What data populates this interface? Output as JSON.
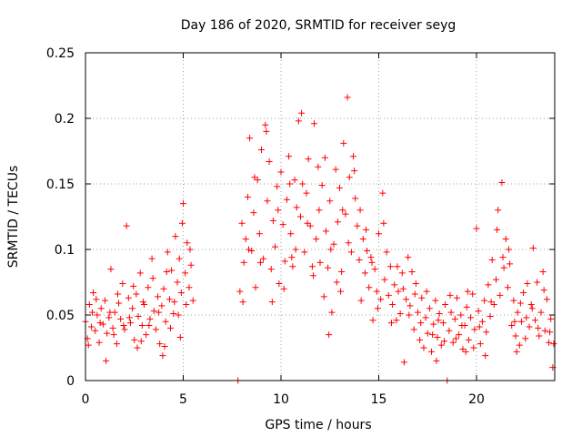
{
  "chart_data": {
    "type": "scatter",
    "title": "Day 186 of 2020, SRMTID for receiver seyg",
    "xlabel": "GPS time / hours",
    "ylabel": "SRMTID / TECUs",
    "xlim": [
      0,
      24
    ],
    "ylim": [
      0,
      0.25
    ],
    "xticks": [
      0,
      5,
      10,
      15,
      20
    ],
    "yticks": [
      0,
      0.05,
      0.1,
      0.15,
      0.2,
      0.25
    ],
    "xtick_labels": [
      "0",
      "5",
      "10",
      "15",
      "20"
    ],
    "ytick_labels": [
      "0",
      "0.05",
      "0.1",
      "0.15",
      "0.2",
      "0.25"
    ],
    "grid": true,
    "marker": "+",
    "color": "#ff0000",
    "grid_color": "#a0a0a0",
    "series": [
      {
        "name": "SRMTID",
        "points": [
          [
            0.0,
            0.045
          ],
          [
            0.1,
            0.032
          ],
          [
            0.2,
            0.058
          ],
          [
            0.3,
            0.041
          ],
          [
            0.4,
            0.067
          ],
          [
            0.5,
            0.038
          ],
          [
            0.6,
            0.05
          ],
          [
            0.7,
            0.029
          ],
          [
            0.8,
            0.055
          ],
          [
            0.9,
            0.043
          ],
          [
            1.0,
            0.061
          ],
          [
            1.1,
            0.036
          ],
          [
            1.2,
            0.048
          ],
          [
            1.3,
            0.085
          ],
          [
            1.4,
            0.04
          ],
          [
            1.5,
            0.052
          ],
          [
            1.6,
            0.028
          ],
          [
            1.7,
            0.059
          ],
          [
            1.8,
            0.047
          ],
          [
            1.9,
            0.074
          ],
          [
            2.0,
            0.039
          ],
          [
            2.1,
            0.118
          ],
          [
            2.2,
            0.063
          ],
          [
            2.3,
            0.044
          ],
          [
            2.4,
            0.055
          ],
          [
            2.5,
            0.031
          ],
          [
            2.6,
            0.066
          ],
          [
            2.7,
            0.049
          ],
          [
            2.8,
            0.082
          ],
          [
            2.9,
            0.042
          ],
          [
            3.0,
            0.058
          ],
          [
            3.1,
            0.035
          ],
          [
            3.2,
            0.071
          ],
          [
            3.3,
            0.047
          ],
          [
            3.4,
            0.093
          ],
          [
            3.5,
            0.053
          ],
          [
            3.6,
            0.039
          ],
          [
            3.7,
            0.064
          ],
          [
            3.8,
            0.028
          ],
          [
            3.9,
            0.057
          ],
          [
            4.0,
            0.07
          ],
          [
            4.1,
            0.045
          ],
          [
            4.2,
            0.098
          ],
          [
            4.3,
            0.062
          ],
          [
            4.4,
            0.084
          ],
          [
            4.5,
            0.051
          ],
          [
            4.6,
            0.11
          ],
          [
            4.7,
            0.075
          ],
          [
            4.8,
            0.093
          ],
          [
            4.9,
            0.067
          ],
          [
            5.0,
            0.135
          ],
          [
            5.1,
            0.082
          ],
          [
            5.2,
            0.105
          ],
          [
            5.3,
            0.071
          ],
          [
            5.4,
            0.088
          ],
          [
            5.5,
            0.061
          ],
          [
            0.15,
            0.027
          ],
          [
            0.35,
            0.052
          ],
          [
            0.55,
            0.062
          ],
          [
            0.75,
            0.044
          ],
          [
            1.05,
            0.015
          ],
          [
            1.25,
            0.052
          ],
          [
            1.45,
            0.035
          ],
          [
            1.65,
            0.066
          ],
          [
            1.95,
            0.042
          ],
          [
            2.25,
            0.048
          ],
          [
            2.45,
            0.072
          ],
          [
            2.65,
            0.025
          ],
          [
            2.95,
            0.06
          ],
          [
            3.25,
            0.042
          ],
          [
            3.45,
            0.078
          ],
          [
            3.75,
            0.052
          ],
          [
            3.95,
            0.019
          ],
          [
            4.15,
            0.083
          ],
          [
            4.35,
            0.04
          ],
          [
            4.55,
            0.06
          ],
          [
            4.75,
            0.05
          ],
          [
            4.95,
            0.12
          ],
          [
            5.15,
            0.058
          ],
          [
            5.35,
            0.1
          ],
          [
            4.85,
            0.033
          ],
          [
            4.05,
            0.026
          ],
          [
            2.85,
            0.03
          ],
          [
            7.8,
            0.0
          ],
          [
            7.9,
            0.068
          ],
          [
            8.0,
            0.12
          ],
          [
            8.1,
            0.09
          ],
          [
            8.2,
            0.108
          ],
          [
            8.3,
            0.14
          ],
          [
            8.4,
            0.185
          ],
          [
            8.5,
            0.099
          ],
          [
            8.6,
            0.128
          ],
          [
            8.7,
            0.071
          ],
          [
            8.8,
            0.153
          ],
          [
            8.9,
            0.112
          ],
          [
            9.0,
            0.176
          ],
          [
            9.1,
            0.093
          ],
          [
            9.2,
            0.195
          ],
          [
            9.3,
            0.137
          ],
          [
            9.4,
            0.167
          ],
          [
            9.5,
            0.085
          ],
          [
            9.6,
            0.122
          ],
          [
            9.7,
            0.102
          ],
          [
            9.8,
            0.148
          ],
          [
            9.9,
            0.074
          ],
          [
            10.0,
            0.159
          ],
          [
            10.1,
            0.119
          ],
          [
            10.2,
            0.091
          ],
          [
            10.3,
            0.138
          ],
          [
            10.4,
            0.171
          ],
          [
            10.5,
            0.112
          ],
          [
            10.6,
            0.087
          ],
          [
            10.7,
            0.153
          ],
          [
            10.8,
            0.132
          ],
          [
            10.9,
            0.198
          ],
          [
            11.0,
            0.125
          ],
          [
            11.1,
            0.15
          ],
          [
            11.2,
            0.098
          ],
          [
            11.3,
            0.143
          ],
          [
            11.4,
            0.169
          ],
          [
            11.5,
            0.118
          ],
          [
            11.6,
            0.087
          ],
          [
            11.7,
            0.196
          ],
          [
            11.8,
            0.108
          ],
          [
            11.9,
            0.163
          ],
          [
            12.0,
            0.09
          ],
          [
            12.1,
            0.149
          ],
          [
            12.2,
            0.064
          ],
          [
            12.3,
            0.114
          ],
          [
            12.4,
            0.086
          ],
          [
            12.5,
            0.137
          ],
          [
            12.6,
            0.052
          ],
          [
            12.7,
            0.104
          ],
          [
            12.8,
            0.161
          ],
          [
            12.9,
            0.121
          ],
          [
            13.0,
            0.147
          ],
          [
            13.1,
            0.083
          ],
          [
            13.2,
            0.181
          ],
          [
            13.3,
            0.127
          ],
          [
            13.4,
            0.216
          ],
          [
            13.5,
            0.155
          ],
          [
            13.6,
            0.098
          ],
          [
            13.7,
            0.171
          ],
          [
            13.8,
            0.139
          ],
          [
            13.9,
            0.118
          ],
          [
            14.0,
            0.092
          ],
          [
            14.1,
            0.061
          ],
          [
            14.2,
            0.108
          ],
          [
            14.3,
            0.082
          ],
          [
            14.4,
            0.099
          ],
          [
            14.5,
            0.071
          ],
          [
            14.6,
            0.094
          ],
          [
            14.7,
            0.046
          ],
          [
            14.8,
            0.085
          ],
          [
            14.9,
            0.068
          ],
          [
            15.0,
            0.112
          ],
          [
            15.1,
            0.062
          ],
          [
            15.2,
            0.143
          ],
          [
            15.3,
            0.077
          ],
          [
            15.4,
            0.098
          ],
          [
            15.5,
            0.065
          ],
          [
            8.05,
            0.06
          ],
          [
            8.35,
            0.1
          ],
          [
            8.65,
            0.155
          ],
          [
            8.95,
            0.09
          ],
          [
            9.25,
            0.19
          ],
          [
            9.55,
            0.06
          ],
          [
            9.85,
            0.13
          ],
          [
            10.15,
            0.07
          ],
          [
            10.45,
            0.15
          ],
          [
            10.75,
            0.1
          ],
          [
            11.05,
            0.204
          ],
          [
            11.35,
            0.12
          ],
          [
            11.65,
            0.08
          ],
          [
            11.95,
            0.13
          ],
          [
            12.25,
            0.17
          ],
          [
            12.55,
            0.1
          ],
          [
            12.85,
            0.075
          ],
          [
            13.15,
            0.13
          ],
          [
            13.45,
            0.105
          ],
          [
            13.75,
            0.16
          ],
          [
            14.05,
            0.13
          ],
          [
            14.35,
            0.115
          ],
          [
            14.65,
            0.09
          ],
          [
            14.95,
            0.055
          ],
          [
            15.25,
            0.12
          ],
          [
            12.45,
            0.035
          ],
          [
            13.05,
            0.068
          ],
          [
            10.55,
            0.094
          ],
          [
            15.6,
            0.087
          ],
          [
            15.7,
            0.058
          ],
          [
            15.8,
            0.073
          ],
          [
            15.9,
            0.046
          ],
          [
            16.0,
            0.068
          ],
          [
            16.1,
            0.051
          ],
          [
            16.2,
            0.082
          ],
          [
            16.3,
            0.014
          ],
          [
            16.4,
            0.062
          ],
          [
            16.5,
            0.094
          ],
          [
            16.6,
            0.057
          ],
          [
            16.7,
            0.083
          ],
          [
            16.8,
            0.039
          ],
          [
            16.9,
            0.074
          ],
          [
            17.0,
            0.052
          ],
          [
            17.1,
            0.031
          ],
          [
            17.2,
            0.063
          ],
          [
            17.3,
            0.025
          ],
          [
            17.4,
            0.048
          ],
          [
            17.5,
            0.036
          ],
          [
            17.6,
            0.055
          ],
          [
            17.7,
            0.022
          ],
          [
            17.8,
            0.043
          ],
          [
            17.9,
            0.061
          ],
          [
            18.0,
            0.033
          ],
          [
            18.1,
            0.051
          ],
          [
            18.2,
            0.027
          ],
          [
            18.3,
            0.044
          ],
          [
            18.4,
            0.058
          ],
          [
            18.5,
            0.0
          ],
          [
            18.6,
            0.038
          ],
          [
            18.7,
            0.052
          ],
          [
            18.8,
            0.029
          ],
          [
            18.9,
            0.047
          ],
          [
            19.0,
            0.063
          ],
          [
            19.1,
            0.035
          ],
          [
            19.2,
            0.05
          ],
          [
            19.3,
            0.024
          ],
          [
            19.4,
            0.042
          ],
          [
            19.5,
            0.056
          ],
          [
            19.6,
            0.031
          ],
          [
            19.7,
            0.048
          ],
          [
            19.8,
            0.066
          ],
          [
            19.9,
            0.039
          ],
          [
            20.0,
            0.116
          ],
          [
            20.1,
            0.053
          ],
          [
            20.2,
            0.028
          ],
          [
            20.3,
            0.045
          ],
          [
            20.4,
            0.061
          ],
          [
            20.5,
            0.037
          ],
          [
            20.6,
            0.073
          ],
          [
            20.7,
            0.049
          ],
          [
            20.8,
            0.092
          ],
          [
            20.9,
            0.058
          ],
          [
            21.0,
            0.077
          ],
          [
            21.1,
            0.13
          ],
          [
            21.2,
            0.065
          ],
          [
            21.3,
            0.151
          ],
          [
            21.4,
            0.086
          ],
          [
            21.5,
            0.108
          ],
          [
            21.6,
            0.071
          ],
          [
            21.7,
            0.089
          ],
          [
            21.8,
            0.042
          ],
          [
            21.9,
            0.061
          ],
          [
            22.0,
            0.034
          ],
          [
            22.1,
            0.052
          ],
          [
            22.2,
            0.027
          ],
          [
            22.3,
            0.045
          ],
          [
            22.4,
            0.067
          ],
          [
            22.5,
            0.032
          ],
          [
            22.6,
            0.074
          ],
          [
            22.7,
            0.041
          ],
          [
            22.8,
            0.058
          ],
          [
            22.9,
            0.101
          ],
          [
            23.0,
            0.046
          ],
          [
            23.1,
            0.075
          ],
          [
            23.2,
            0.034
          ],
          [
            23.3,
            0.052
          ],
          [
            23.4,
            0.083
          ],
          [
            23.5,
            0.038
          ],
          [
            23.6,
            0.062
          ],
          [
            23.7,
            0.029
          ],
          [
            23.8,
            0.047
          ],
          [
            23.9,
            0.01
          ],
          [
            15.65,
            0.044
          ],
          [
            15.95,
            0.087
          ],
          [
            16.25,
            0.07
          ],
          [
            16.55,
            0.05
          ],
          [
            16.85,
            0.066
          ],
          [
            17.15,
            0.044
          ],
          [
            17.45,
            0.068
          ],
          [
            17.75,
            0.035
          ],
          [
            18.05,
            0.046
          ],
          [
            18.35,
            0.03
          ],
          [
            18.65,
            0.065
          ],
          [
            18.95,
            0.032
          ],
          [
            19.25,
            0.042
          ],
          [
            19.55,
            0.068
          ],
          [
            19.85,
            0.025
          ],
          [
            20.15,
            0.041
          ],
          [
            20.45,
            0.019
          ],
          [
            20.75,
            0.06
          ],
          [
            21.05,
            0.115
          ],
          [
            21.35,
            0.094
          ],
          [
            21.65,
            0.1
          ],
          [
            21.95,
            0.045
          ],
          [
            22.25,
            0.059
          ],
          [
            22.55,
            0.048
          ],
          [
            22.85,
            0.055
          ],
          [
            23.15,
            0.04
          ],
          [
            23.45,
            0.069
          ],
          [
            23.75,
            0.037
          ],
          [
            23.95,
            0.028
          ],
          [
            17.95,
            0.015
          ],
          [
            19.45,
            0.022
          ],
          [
            22.05,
            0.022
          ]
        ]
      }
    ]
  }
}
